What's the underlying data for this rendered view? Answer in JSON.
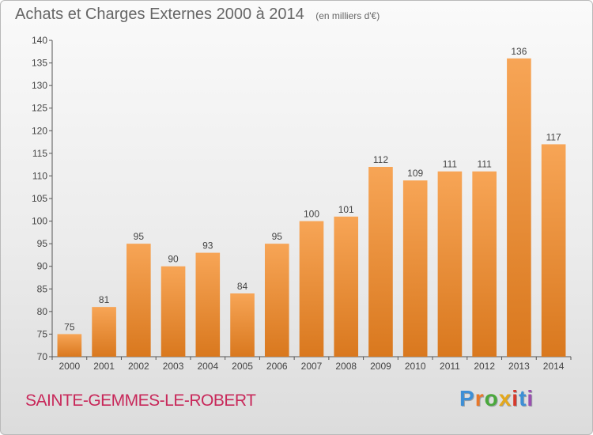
{
  "header": {
    "title": "Achats et Charges Externes 2000 à 2014",
    "subtitle": "(en milliers d'€)"
  },
  "footer": {
    "place": "SAINTE-GEMMES-LE-ROBERT",
    "logo": {
      "text": "Proxiti",
      "colors": [
        "#3d8fd6",
        "#e8782a",
        "#4aa83c",
        "#e4a81c",
        "#d6392b",
        "#3d8fd6",
        "#9b4fb0"
      ]
    }
  },
  "chart_data": {
    "type": "bar",
    "categories": [
      "2000",
      "2001",
      "2002",
      "2003",
      "2004",
      "2005",
      "2006",
      "2007",
      "2008",
      "2009",
      "2010",
      "2011",
      "2012",
      "2013",
      "2014"
    ],
    "values": [
      75,
      81,
      95,
      90,
      93,
      84,
      95,
      100,
      101,
      112,
      109,
      111,
      111,
      136,
      117
    ],
    "title": "Achats et Charges Externes 2000 à 2014",
    "subtitle": "(en milliers d'€)",
    "xlabel": "",
    "ylabel": "",
    "ylim": [
      70,
      140
    ],
    "yticks": [
      70,
      75,
      80,
      85,
      90,
      95,
      100,
      105,
      110,
      115,
      120,
      125,
      130,
      135,
      140
    ],
    "grid": false,
    "legend": "none",
    "bar_color": "#f0963c",
    "bar_color_dark": "#d9781e"
  }
}
